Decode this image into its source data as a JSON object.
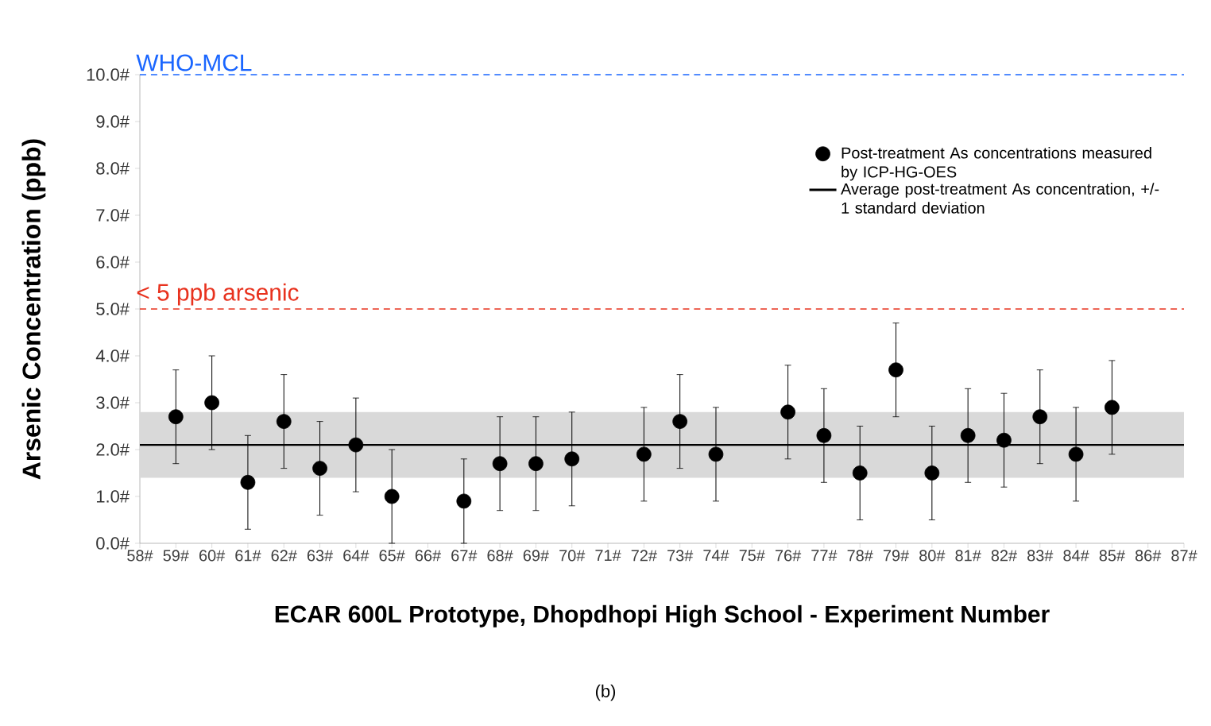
{
  "chart_data": {
    "type": "scatter",
    "xlabel": "ECAR 600L Prototype, Dhopdhopi High School - Experiment Number",
    "ylabel": "Arsenic Concentration (ppb)",
    "categories": [
      "58#",
      "59#",
      "60#",
      "61#",
      "62#",
      "63#",
      "64#",
      "65#",
      "66#",
      "67#",
      "68#",
      "69#",
      "70#",
      "71#",
      "72#",
      "73#",
      "74#",
      "75#",
      "76#",
      "77#",
      "78#",
      "79#",
      "80#",
      "81#",
      "82#",
      "83#",
      "84#",
      "85#",
      "86#",
      "87#"
    ],
    "series": [
      {
        "name": "Post-treatment As concentrations measured by ICP-HG-OES",
        "color": "#000000",
        "values": [
          null,
          2.7,
          3.0,
          1.3,
          2.6,
          1.6,
          2.1,
          1.0,
          null,
          0.9,
          1.7,
          1.7,
          1.8,
          null,
          1.9,
          2.6,
          1.9,
          null,
          2.8,
          2.3,
          1.5,
          3.7,
          1.5,
          2.3,
          2.2,
          2.7,
          1.9,
          2.9,
          null,
          null
        ],
        "errors": [
          null,
          1.0,
          1.0,
          1.0,
          1.0,
          1.0,
          1.0,
          1.0,
          null,
          0.9,
          1.0,
          1.0,
          1.0,
          null,
          1.0,
          1.0,
          1.0,
          null,
          1.0,
          1.0,
          1.0,
          1.0,
          1.0,
          1.0,
          1.0,
          1.0,
          1.0,
          1.0,
          null,
          null
        ]
      }
    ],
    "marker": "circle",
    "ylim": [
      0,
      10
    ],
    "yticks": [
      {
        "value": 0,
        "label": "0.0#"
      },
      {
        "value": 1,
        "label": "1.0#"
      },
      {
        "value": 2,
        "label": "2.0#"
      },
      {
        "value": 3,
        "label": "3.0#"
      },
      {
        "value": 4,
        "label": "4.0#"
      },
      {
        "value": 5,
        "label": "5.0#"
      },
      {
        "value": 6,
        "label": "6.0#"
      },
      {
        "value": 7,
        "label": "7.0#"
      },
      {
        "value": 8,
        "label": "8.0#"
      },
      {
        "value": 9,
        "label": "9.0#"
      },
      {
        "value": 10,
        "label": "10.0#"
      }
    ],
    "ref_lines": [
      {
        "axis": "y",
        "value": 10,
        "label": "WHO-MCL",
        "color": "#1a66ff",
        "line_style": "dashed"
      },
      {
        "axis": "y",
        "value": 5,
        "label": "< 5 ppb arsenic",
        "color": "#e8321e",
        "line_style": "dashed"
      },
      {
        "axis": "y",
        "value": 2.1,
        "label": "Average post-treatment As concentration, +/- 1 standard deviation",
        "color": "#000000",
        "line_style": "solid"
      }
    ],
    "bands": [
      {
        "axis": "y",
        "from": 1.4,
        "to": 2.8,
        "color": "#d9d9d9"
      }
    ],
    "legend": "top right",
    "annotations": [
      "(b)"
    ]
  }
}
